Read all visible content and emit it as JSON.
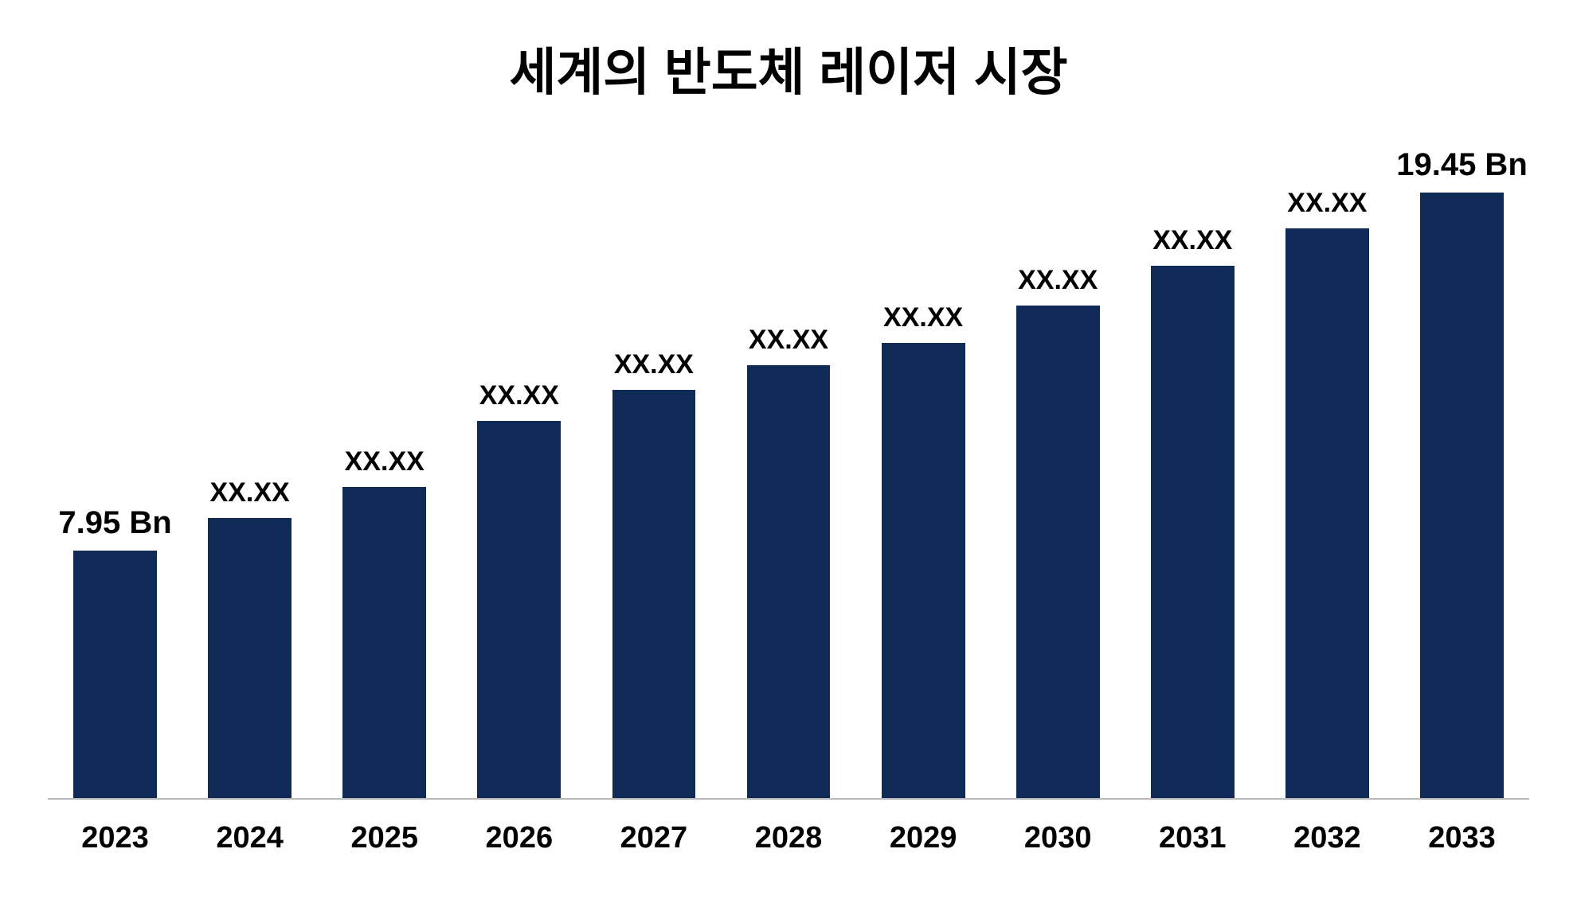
{
  "chart": {
    "type": "bar",
    "title": "세계의 반도체 레이저 시장",
    "title_fontsize": 64,
    "title_fontweight": 900,
    "title_color": "#000000",
    "background_color": "#ffffff",
    "bar_color": "#0f2a56",
    "axis_line_color": "#b9b9b9",
    "value_label_fontsize": 34,
    "value_label_fontweight": 700,
    "value_label_color": "#000000",
    "endpoint_label_fontsize": 40,
    "endpoint_label_fontweight": 900,
    "xaxis_label_fontsize": 38,
    "xaxis_label_fontweight": 800,
    "xaxis_label_color": "#000000",
    "bar_width_ratio": 0.62,
    "ylim": [
      0,
      20
    ],
    "categories": [
      "2023",
      "2024",
      "2025",
      "2026",
      "2027",
      "2028",
      "2029",
      "2030",
      "2031",
      "2032",
      "2033"
    ],
    "values": [
      7.95,
      9.0,
      10.0,
      12.1,
      13.1,
      13.9,
      14.6,
      15.8,
      17.1,
      18.3,
      19.45
    ],
    "value_labels": [
      "7.95 Bn",
      "XX.XX",
      "XX.XX",
      "XX.XX",
      "XX.XX",
      "XX.XX",
      "XX.XX",
      "XX.XX",
      "XX.XX",
      "XX.XX",
      "19.45 Bn"
    ],
    "endpoint_indices": [
      0,
      10
    ]
  }
}
